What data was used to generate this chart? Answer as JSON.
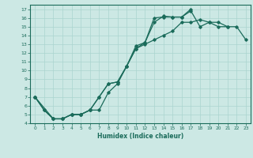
{
  "xlabel": "Humidex (Indice chaleur)",
  "xlim": [
    -0.5,
    23.5
  ],
  "ylim": [
    4,
    17.5
  ],
  "xticks": [
    0,
    1,
    2,
    3,
    4,
    5,
    6,
    7,
    8,
    9,
    10,
    11,
    12,
    13,
    14,
    15,
    16,
    17,
    18,
    19,
    20,
    21,
    22,
    23
  ],
  "yticks": [
    4,
    5,
    6,
    7,
    8,
    9,
    10,
    11,
    12,
    13,
    14,
    15,
    16,
    17
  ],
  "line_color": "#1a6b5a",
  "bg_color": "#cce8e4",
  "grid_color": "#aad4cf",
  "line1_x": [
    0,
    1,
    2,
    3,
    4,
    5,
    6,
    7,
    8,
    9,
    10,
    11,
    12,
    13,
    14,
    15,
    16,
    17,
    18,
    19,
    20,
    21
  ],
  "line1_y": [
    7.0,
    5.5,
    4.5,
    4.5,
    5.0,
    5.0,
    5.5,
    5.5,
    7.5,
    8.5,
    10.5,
    12.5,
    13.2,
    16.0,
    16.1,
    16.1,
    16.1,
    16.8,
    15.0,
    15.5,
    15.0,
    15.0
  ],
  "line2_x": [
    0,
    1,
    2,
    3,
    4,
    5,
    6,
    7,
    8,
    9,
    10,
    11,
    12,
    13,
    14,
    15,
    16,
    17
  ],
  "line2_y": [
    7.0,
    5.5,
    4.5,
    4.5,
    5.0,
    5.0,
    5.5,
    7.0,
    8.5,
    8.7,
    10.5,
    12.8,
    13.2,
    15.5,
    16.2,
    16.1,
    16.1,
    17.0
  ],
  "line3_x": [
    0,
    2,
    3,
    4,
    5,
    6,
    7,
    8,
    9,
    10,
    11,
    12,
    13,
    14,
    15,
    16,
    17,
    18,
    19,
    20,
    21,
    22,
    23
  ],
  "line3_y": [
    7.0,
    4.5,
    4.5,
    5.0,
    5.0,
    5.5,
    7.0,
    8.5,
    8.7,
    10.5,
    12.5,
    13.0,
    13.5,
    14.0,
    14.5,
    15.5,
    15.5,
    15.8,
    15.5,
    15.5,
    15.0,
    15.0,
    13.5
  ]
}
